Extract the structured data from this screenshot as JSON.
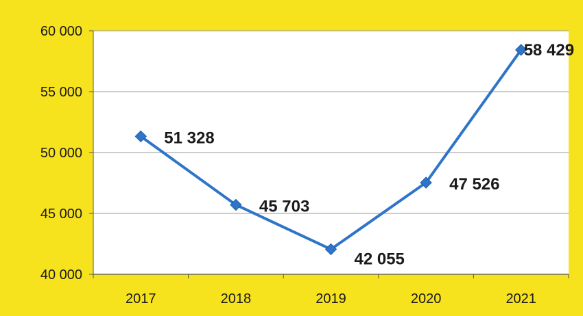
{
  "chart_data": {
    "type": "line",
    "title": "",
    "xlabel": "",
    "ylabel": "",
    "categories": [
      "2017",
      "2018",
      "2019",
      "2020",
      "2021"
    ],
    "series": [
      {
        "name": "",
        "values": [
          51328,
          45703,
          42055,
          47526,
          58429
        ],
        "data_labels": [
          "51 328",
          "45 703",
          "42 055",
          "47 526",
          "58 429"
        ],
        "color": "#2e75c8",
        "marker": "diamond"
      }
    ],
    "ylim": [
      40000,
      60000
    ],
    "y_ticks": [
      40000,
      45000,
      50000,
      55000,
      60000
    ],
    "y_tick_labels": [
      "40 000",
      "45 000",
      "50 000",
      "55 000",
      "60 000"
    ],
    "grid": true,
    "legend": "none"
  },
  "colors": {
    "background": "#f7e21e",
    "plot_area": "#ffffff",
    "line": "#2e75c8",
    "marker": "#2e75c8",
    "text": "#1a1a1a",
    "gridline": "#9a9a9a"
  }
}
